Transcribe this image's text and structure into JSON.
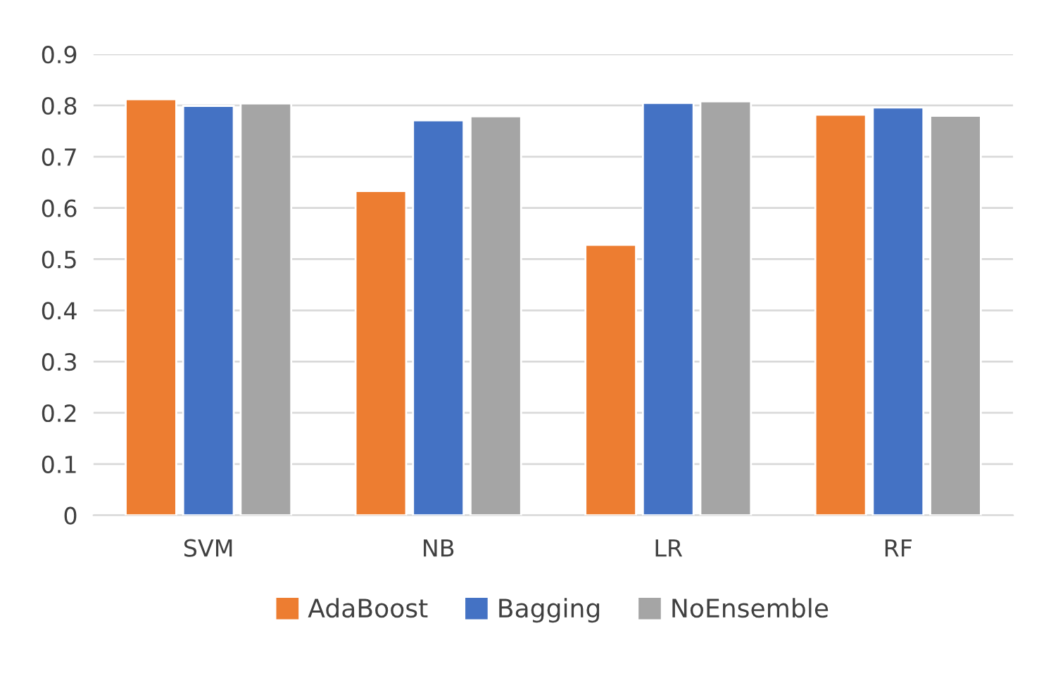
{
  "chart_data": {
    "type": "bar",
    "categories": [
      "SVM",
      "NB",
      "LR",
      "RF"
    ],
    "series": [
      {
        "name": "AdaBoost",
        "color": "#ed7d31",
        "values": [
          0.812,
          0.633,
          0.528,
          0.782
        ]
      },
      {
        "name": "Bagging",
        "color": "#4472c4",
        "values": [
          0.799,
          0.771,
          0.805,
          0.796
        ]
      },
      {
        "name": "NoEnsemble",
        "color": "#a5a5a5",
        "values": [
          0.804,
          0.779,
          0.808,
          0.78
        ]
      }
    ],
    "ylim": [
      0,
      0.9
    ],
    "yticks": [
      0,
      0.1,
      0.2,
      0.3,
      0.4,
      0.5,
      0.6,
      0.7,
      0.8,
      0.9
    ],
    "grid": "y",
    "legend": "bottom"
  }
}
